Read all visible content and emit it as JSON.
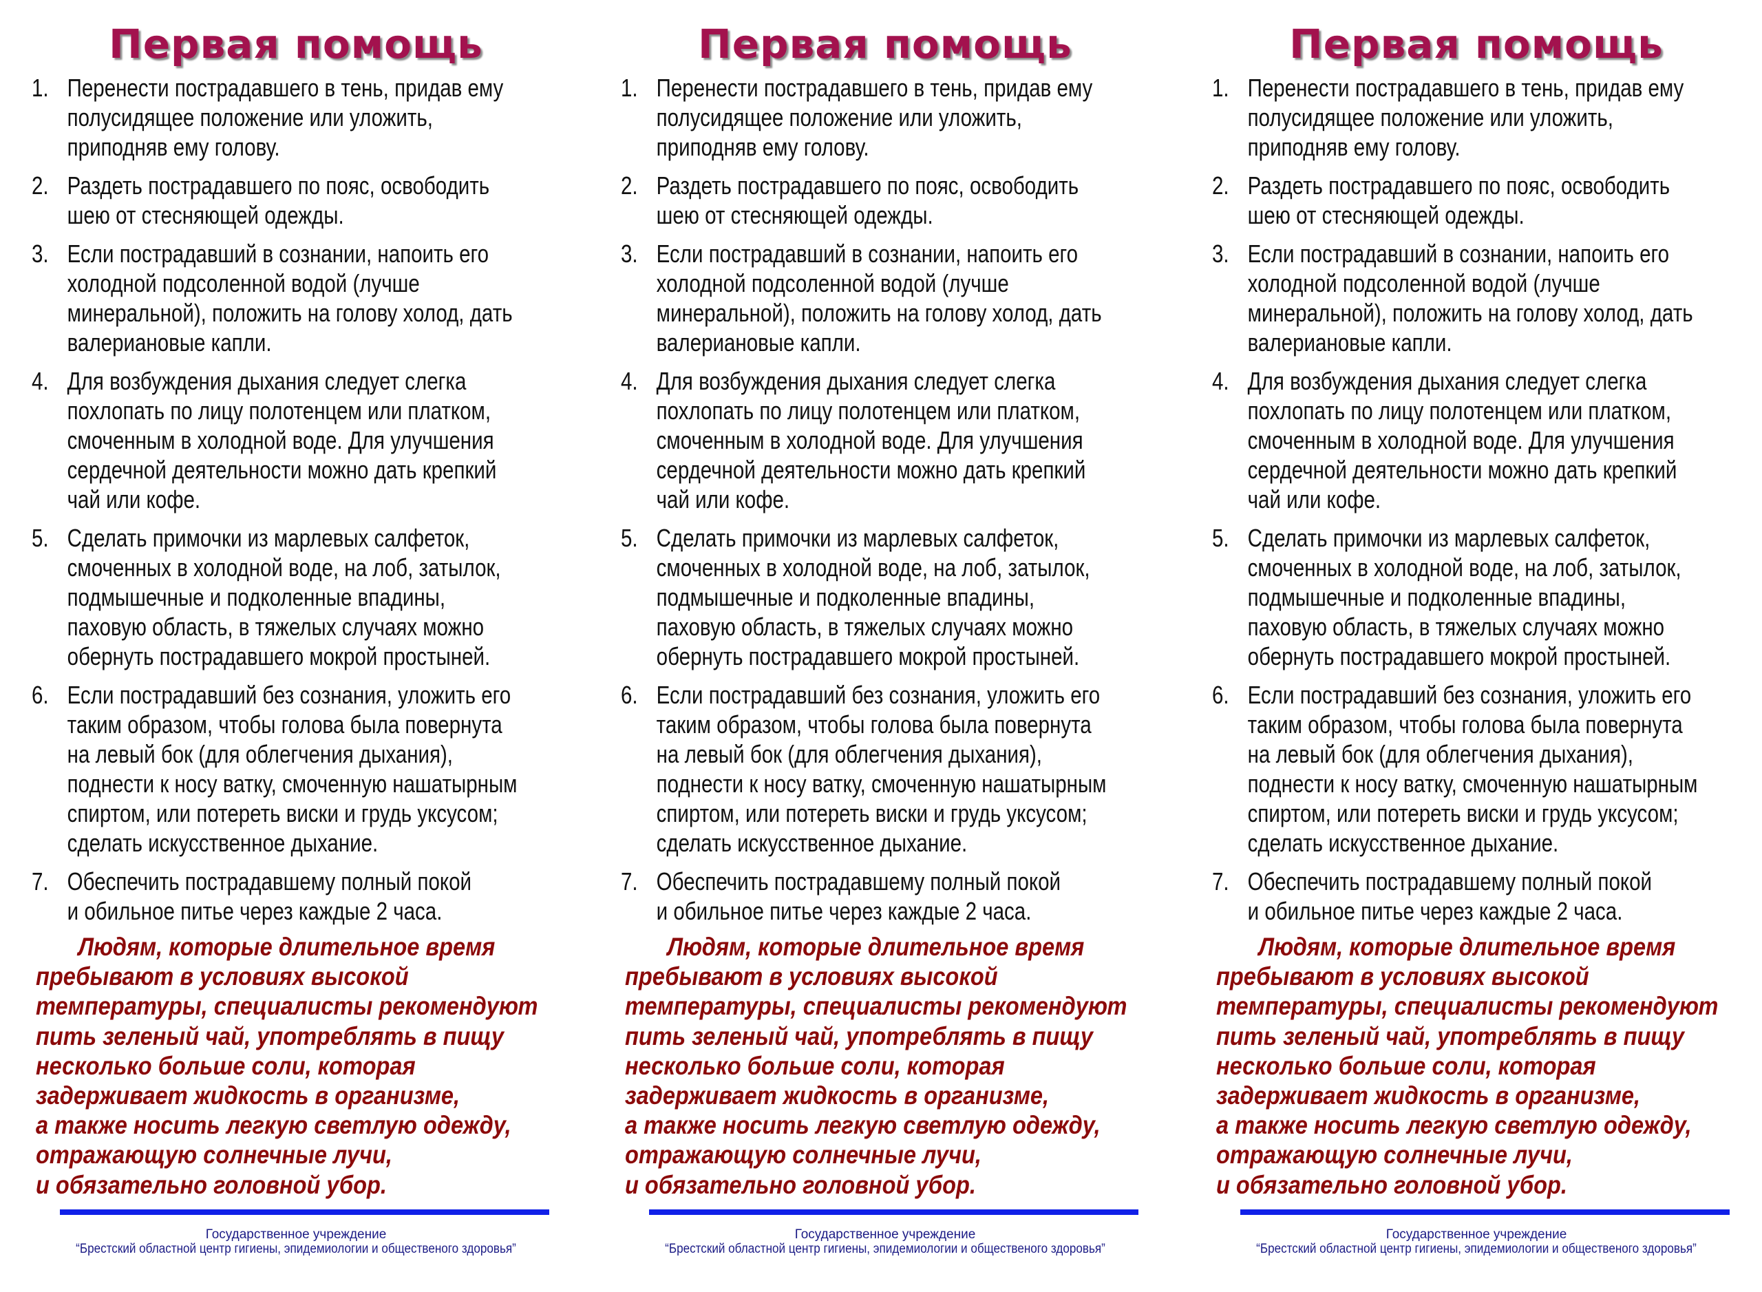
{
  "title": "Первая помощь",
  "items": [
    {
      "number": "1.",
      "lines": [
        "Перенести пострадавшего в тень, придав ему",
        "полусидящее положение или уложить,",
        "приподняв ему голову."
      ]
    },
    {
      "number": "2.",
      "lines": [
        "Раздеть пострадавшего по пояс, освободить",
        "шею от стесняющей одежды."
      ]
    },
    {
      "number": "3.",
      "lines": [
        "Если пострадавший в сознании, напоить его",
        "холодной подсоленной водой (лучше",
        "минеральной), положить на голову холод, дать",
        "валериановые капли."
      ]
    },
    {
      "number": "4.",
      "lines": [
        "Для возбуждения дыхания следует слегка",
        "похлопать по лицу полотенцем или платком,",
        "смоченным в холодной воде. Для улучшения",
        "сердечной деятельности можно дать крепкий",
        "чай или кофе."
      ]
    },
    {
      "number": "5.",
      "lines": [
        "Сделать примочки из марлевых салфеток,",
        "смоченных в холодной воде, на лоб, затылок,",
        "подмышечные и подколенные впадины,",
        "паховую область, в тяжелых случаях можно",
        "обернуть пострадавшего мокрой простыней."
      ]
    },
    {
      "number": "6.",
      "lines": [
        "Если пострадавший без сознания, уложить его",
        "таким образом, чтобы голова была повернута",
        "на левый бок (для облегчения дыхания),",
        "поднести к носу ватку, смоченную нашатырным",
        "спиртом, или потереть виски и грудь уксусом;",
        "сделать искусственное дыхание."
      ]
    },
    {
      "number": "7.",
      "lines": [
        "Обеспечить пострадавшему полный покой",
        "и обильное питье через каждые 2 часа."
      ]
    }
  ],
  "note_lines": [
    "Людям, которые длительное время",
    "пребывают в условиях высокой",
    "температуры, специалисты рекомендуют",
    "пить зеленый чай, употреблять в пищу",
    "несколько больше соли, которая",
    "задерживает жидкость в организме,",
    "а также носить легкую светлую одежду,",
    "отражающую солнечные лучи,",
    "и обязательно головной убор."
  ],
  "footer": {
    "line1": "Государственное учреждение",
    "line2": "“Брестский областной центр гигиены, эпидемиологии и общественого здоровья”"
  },
  "colors": {
    "title": "#a3124e",
    "note": "#8b0a0a",
    "rule": "#1020e8",
    "footer": "#1c1c86"
  }
}
